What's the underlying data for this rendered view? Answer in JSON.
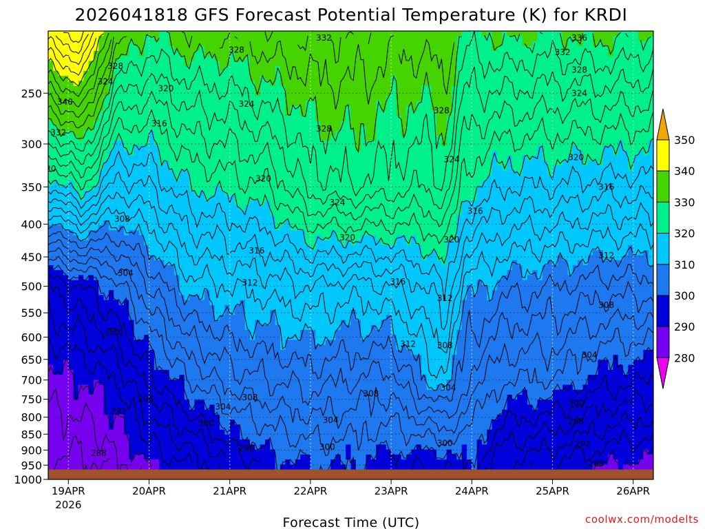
{
  "chart_data": {
    "type": "contour",
    "title": "2026041818 GFS Forecast Potential Temperature (K) for KRDI",
    "xlabel": "Forecast Time (UTC)",
    "ylabel": "",
    "credit": "coolwx.com/modelts",
    "y_scale": "log",
    "y_inverted": true,
    "ylim": [
      1000,
      200
    ],
    "y_ticks": [
      "250",
      "300",
      "350",
      "400",
      "450",
      "500",
      "550",
      "600",
      "650",
      "700",
      "750",
      "800",
      "850",
      "900",
      "950",
      "1000"
    ],
    "x_ticks": [
      {
        "label": "19APR",
        "sublabel": "2026",
        "hour": 6
      },
      {
        "label": "20APR",
        "hour": 30
      },
      {
        "label": "21APR",
        "hour": 54
      },
      {
        "label": "22APR",
        "hour": 78
      },
      {
        "label": "23APR",
        "hour": 102
      },
      {
        "label": "24APR",
        "hour": 126
      },
      {
        "label": "25APR",
        "hour": 150
      },
      {
        "label": "26APR",
        "hour": 174
      }
    ],
    "xlim_hours": [
      0,
      180
    ],
    "colorbar": {
      "ticks": [
        "350",
        "340",
        "330",
        "320",
        "310",
        "300",
        "290",
        "280"
      ],
      "bands": [
        {
          "range": "above 350",
          "color": "#f0a800"
        },
        {
          "range": "340-350",
          "color": "#ffff00"
        },
        {
          "range": "330-340",
          "color": "#46d400"
        },
        {
          "range": "320-330",
          "color": "#00f08c"
        },
        {
          "range": "310-320",
          "color": "#00c8ff"
        },
        {
          "range": "300-310",
          "color": "#1e78f0"
        },
        {
          "range": "290-300",
          "color": "#0000dc"
        },
        {
          "range": "280-290",
          "color": "#7800f0"
        },
        {
          "range": "below 280",
          "color": "#f000f0"
        }
      ]
    },
    "terrain_color": "#a0522d",
    "contour_labels": [
      {
        "text": "340",
        "hour": 5,
        "p": 258
      },
      {
        "text": "332",
        "hour": 3,
        "p": 288
      },
      {
        "text": "328",
        "hour": 20,
        "p": 227
      },
      {
        "text": "324",
        "hour": 17,
        "p": 240
      },
      {
        "text": "320",
        "hour": 0,
        "p": 328
      },
      {
        "text": "320",
        "hour": 35,
        "p": 246
      },
      {
        "text": "316",
        "hour": 33,
        "p": 279
      },
      {
        "text": "308",
        "hour": 22,
        "p": 393
      },
      {
        "text": "304",
        "hour": 23,
        "p": 477
      },
      {
        "text": "300",
        "hour": 20,
        "p": 590
      },
      {
        "text": "296",
        "hour": 29,
        "p": 750
      },
      {
        "text": "292",
        "hour": 21,
        "p": 783
      },
      {
        "text": "288",
        "hour": 15,
        "p": 910
      },
      {
        "text": "328",
        "hour": 56,
        "p": 214
      },
      {
        "text": "332",
        "hour": 82,
        "p": 205
      },
      {
        "text": "324",
        "hour": 59,
        "p": 260
      },
      {
        "text": "328",
        "hour": 82,
        "p": 284
      },
      {
        "text": "320",
        "hour": 64,
        "p": 340
      },
      {
        "text": "316",
        "hour": 62,
        "p": 440
      },
      {
        "text": "312",
        "hour": 60,
        "p": 494
      },
      {
        "text": "308",
        "hour": 60,
        "p": 745
      },
      {
        "text": "304",
        "hour": 52,
        "p": 770
      },
      {
        "text": "300",
        "hour": 47,
        "p": 818
      },
      {
        "text": "296",
        "hour": 59,
        "p": 895
      },
      {
        "text": "324",
        "hour": 86,
        "p": 370
      },
      {
        "text": "320",
        "hour": 89,
        "p": 420
      },
      {
        "text": "308",
        "hour": 96,
        "p": 735
      },
      {
        "text": "304",
        "hour": 84,
        "p": 808
      },
      {
        "text": "300",
        "hour": 83,
        "p": 890
      },
      {
        "text": "328",
        "hour": 117,
        "p": 266
      },
      {
        "text": "324",
        "hour": 120,
        "p": 317
      },
      {
        "text": "316",
        "hour": 104,
        "p": 492
      },
      {
        "text": "312",
        "hour": 107,
        "p": 615
      },
      {
        "text": "320",
        "hour": 120,
        "p": 423
      },
      {
        "text": "316",
        "hour": 127,
        "p": 382
      },
      {
        "text": "312",
        "hour": 118,
        "p": 522
      },
      {
        "text": "308",
        "hour": 118,
        "p": 618
      },
      {
        "text": "304",
        "hour": 119,
        "p": 720
      },
      {
        "text": "300",
        "hour": 118,
        "p": 878
      },
      {
        "text": "336",
        "hour": 158,
        "p": 205
      },
      {
        "text": "332",
        "hour": 153,
        "p": 216
      },
      {
        "text": "328",
        "hour": 158,
        "p": 230
      },
      {
        "text": "324",
        "hour": 158,
        "p": 250
      },
      {
        "text": "320",
        "hour": 157,
        "p": 315
      },
      {
        "text": "316",
        "hour": 166,
        "p": 350
      },
      {
        "text": "312",
        "hour": 166,
        "p": 448
      },
      {
        "text": "308",
        "hour": 166,
        "p": 535
      },
      {
        "text": "304",
        "hour": 161,
        "p": 640
      },
      {
        "text": "300",
        "hour": 157,
        "p": 760
      },
      {
        "text": "296",
        "hour": 157,
        "p": 812
      },
      {
        "text": "292",
        "hour": 159,
        "p": 880
      },
      {
        "text": "288",
        "hour": 163,
        "p": 945
      }
    ]
  }
}
